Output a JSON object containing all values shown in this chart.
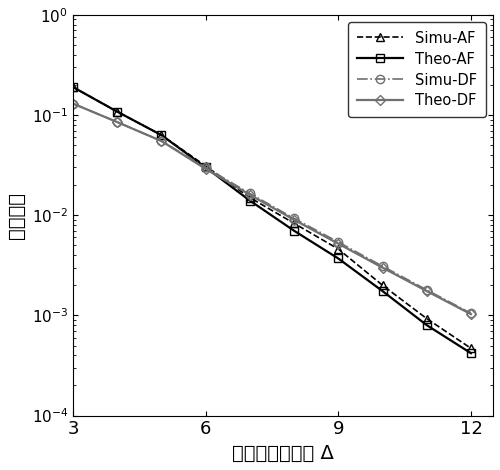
{
  "x": [
    3,
    4,
    5,
    6,
    7,
    8,
    9,
    10,
    11,
    12
  ],
  "simu_af": [
    0.19,
    0.108,
    0.063,
    0.031,
    0.015,
    0.0083,
    0.0046,
    0.002,
    0.00093,
    0.00047
  ],
  "theo_af": [
    0.19,
    0.108,
    0.063,
    0.03,
    0.014,
    0.007,
    0.0037,
    0.00175,
    0.0008,
    0.00042
  ],
  "simu_df": [
    0.13,
    0.085,
    0.055,
    0.03,
    0.0165,
    0.0093,
    0.0054,
    0.0031,
    0.0018,
    0.00105
  ],
  "theo_df": [
    0.13,
    0.085,
    0.055,
    0.029,
    0.016,
    0.009,
    0.0052,
    0.003,
    0.00175,
    0.00103
  ],
  "xlabel": "信道平均信噪比 Δ",
  "ylabel": "中断概率",
  "xlim": [
    3,
    12.5
  ],
  "ylim": [
    0.0001,
    1.0
  ],
  "xticks": [
    3,
    6,
    9,
    12
  ],
  "legend_labels": [
    "Simu-AF",
    "Theo-AF",
    "Simu-DF",
    "Theo-DF"
  ]
}
